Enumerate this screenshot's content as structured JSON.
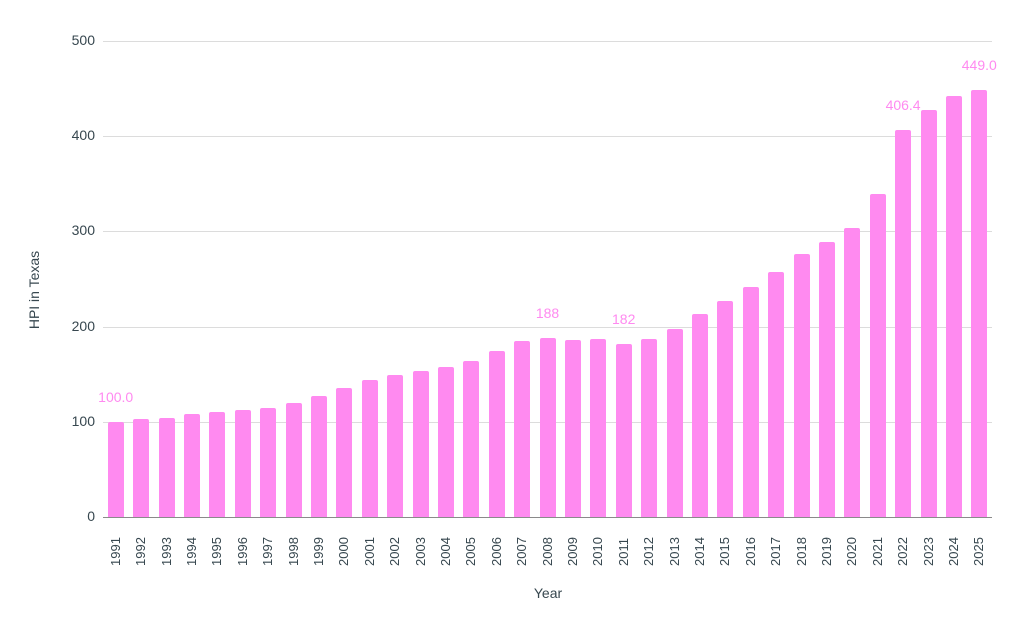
{
  "chart_data": {
    "type": "bar",
    "title": "",
    "xlabel": "Year",
    "ylabel": "HPI in Texas",
    "ylim": [
      0,
      500
    ],
    "yticks": [
      0,
      100,
      200,
      300,
      400,
      500
    ],
    "grid": true,
    "legend": null,
    "bar_color": "#ff8af0",
    "categories": [
      "1991",
      "1992",
      "1993",
      "1994",
      "1995",
      "1996",
      "1997",
      "1998",
      "1999",
      "2000",
      "2001",
      "2002",
      "2003",
      "2004",
      "2005",
      "2006",
      "2007",
      "2008",
      "2009",
      "2010",
      "2011",
      "2012",
      "2013",
      "2014",
      "2015",
      "2016",
      "2017",
      "2018",
      "2019",
      "2020",
      "2021",
      "2022",
      "2023",
      "2024",
      "2025"
    ],
    "values": [
      100.0,
      102.5,
      104,
      108.5,
      110,
      112.5,
      114,
      119.5,
      127,
      136,
      144,
      149,
      153,
      157.5,
      164,
      174.5,
      185,
      188,
      186,
      187.5,
      182,
      187,
      198,
      213,
      227,
      242,
      257.5,
      276.5,
      289,
      304,
      339.5,
      406.4,
      427,
      442,
      449.0
    ],
    "data_labels": [
      {
        "category": "1991",
        "text": "100.0"
      },
      {
        "category": "2008",
        "text": "188"
      },
      {
        "category": "2011",
        "text": "182"
      },
      {
        "category": "2022",
        "text": "406.4"
      },
      {
        "category": "2025",
        "text": "449.0"
      }
    ]
  }
}
